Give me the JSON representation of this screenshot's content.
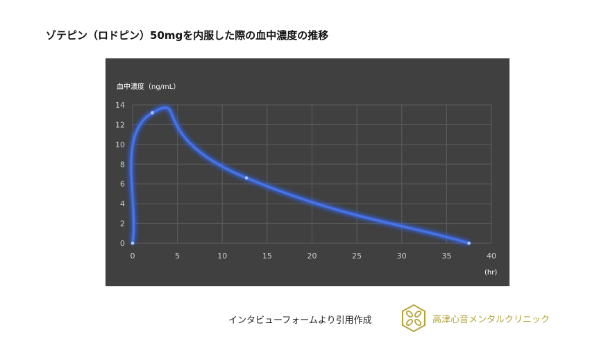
{
  "title": "ゾテピン（ロドピン）50mgを内服した際の血中濃度の推移",
  "source_note": "インタビューフォームより引用作成",
  "clinic_name": "高津心音メンタルクリニック",
  "colors": {
    "background": "#ffffff",
    "panel": "#404040",
    "grid": "#5e5e5e",
    "line": "#4a78e0",
    "glow": "#3a6bff",
    "clinic_text": "#b5a43a",
    "logo": "#b5a43a"
  },
  "icons": {
    "logo": "clinic-logo-icon"
  },
  "chart_data": {
    "type": "scatter",
    "style": "smooth-line-with-markers",
    "ylabel": "血中濃度（ng/mL）",
    "xunit": "(hr)",
    "xlim": [
      0,
      40
    ],
    "ylim": [
      0,
      14
    ],
    "xticks": [
      0,
      5,
      10,
      15,
      20,
      25,
      30,
      35,
      40
    ],
    "yticks": [
      0,
      2,
      4,
      6,
      8,
      10,
      12,
      14
    ],
    "grid": true,
    "legend": "none",
    "series": [
      {
        "points": [
          {
            "x": 0,
            "y": 0
          },
          {
            "x": 2.2,
            "y": 13.2
          },
          {
            "x": 12.7,
            "y": 6.6
          },
          {
            "x": 37.5,
            "y": 0
          }
        ]
      }
    ]
  }
}
